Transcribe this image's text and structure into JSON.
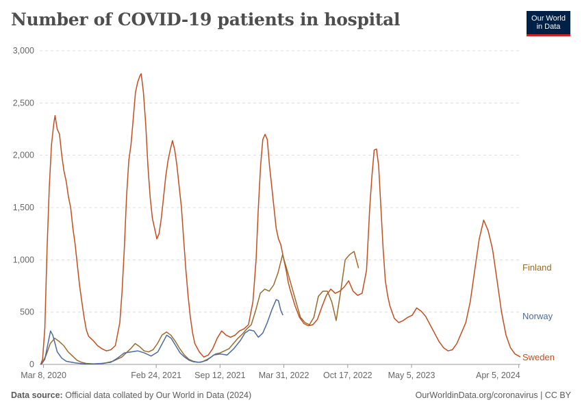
{
  "title": "Number of COVID-19 patients in hospital",
  "logo": {
    "line1": "Our World",
    "line2": "in Data"
  },
  "footer": {
    "source_label": "Data source:",
    "source_text": "Official data collated by Our World in Data (2024)",
    "right_text": "OurWorldinData.org/coronavirus | CC BY"
  },
  "chart_data": {
    "type": "line",
    "title": "Number of COVID-19 patients in hospital",
    "x_start": "2020-02-25",
    "x_end": "2024-04-10",
    "ylim": [
      0,
      3000
    ],
    "y_ticks": [
      0,
      500,
      1000,
      1500,
      2000,
      2500,
      3000
    ],
    "y_tick_labels": [
      "0",
      "500",
      "1,000",
      "1,500",
      "2,000",
      "2,500",
      "3,000"
    ],
    "x_ticks": [
      "2020-03-08",
      "2021-02-24",
      "2021-09-12",
      "2022-03-31",
      "2022-10-17",
      "2023-05-05",
      "2024-04-05"
    ],
    "x_tick_labels": [
      "Mar 8, 2020",
      "Feb 24, 2021",
      "Sep 12, 2021",
      "Mar 31, 2022",
      "Oct 17, 2022",
      "May 5, 2023",
      "Apr 5, 2024"
    ],
    "grid": "horizontal dashed",
    "legend": "right, labels at line ends",
    "series": [
      {
        "name": "Sweden",
        "color": "#c44d1e",
        "points": [
          [
            "2020-02-28",
            0
          ],
          [
            "2020-03-05",
            50
          ],
          [
            "2020-03-12",
            350
          ],
          [
            "2020-03-19",
            1100
          ],
          [
            "2020-03-26",
            1700
          ],
          [
            "2020-04-02",
            2100
          ],
          [
            "2020-04-09",
            2300
          ],
          [
            "2020-04-13",
            2380
          ],
          [
            "2020-04-20",
            2250
          ],
          [
            "2020-04-27",
            2200
          ],
          [
            "2020-05-04",
            2000
          ],
          [
            "2020-05-11",
            1850
          ],
          [
            "2020-05-18",
            1750
          ],
          [
            "2020-05-25",
            1600
          ],
          [
            "2020-06-01",
            1500
          ],
          [
            "2020-06-08",
            1300
          ],
          [
            "2020-06-15",
            1150
          ],
          [
            "2020-06-22",
            950
          ],
          [
            "2020-06-29",
            750
          ],
          [
            "2020-07-06",
            600
          ],
          [
            "2020-07-13",
            450
          ],
          [
            "2020-07-20",
            330
          ],
          [
            "2020-07-27",
            270
          ],
          [
            "2020-08-10",
            230
          ],
          [
            "2020-08-24",
            180
          ],
          [
            "2020-09-07",
            150
          ],
          [
            "2020-09-21",
            130
          ],
          [
            "2020-10-05",
            140
          ],
          [
            "2020-10-19",
            180
          ],
          [
            "2020-11-02",
            400
          ],
          [
            "2020-11-09",
            700
          ],
          [
            "2020-11-16",
            1100
          ],
          [
            "2020-11-23",
            1600
          ],
          [
            "2020-11-30",
            1950
          ],
          [
            "2020-12-07",
            2100
          ],
          [
            "2020-12-14",
            2350
          ],
          [
            "2020-12-21",
            2600
          ],
          [
            "2020-12-28",
            2700
          ],
          [
            "2021-01-04",
            2760
          ],
          [
            "2021-01-08",
            2780
          ],
          [
            "2021-01-15",
            2600
          ],
          [
            "2021-01-22",
            2300
          ],
          [
            "2021-01-29",
            1900
          ],
          [
            "2021-02-05",
            1600
          ],
          [
            "2021-02-12",
            1400
          ],
          [
            "2021-02-19",
            1300
          ],
          [
            "2021-02-26",
            1200
          ],
          [
            "2021-03-05",
            1250
          ],
          [
            "2021-03-12",
            1400
          ],
          [
            "2021-03-19",
            1600
          ],
          [
            "2021-03-26",
            1800
          ],
          [
            "2021-04-02",
            1950
          ],
          [
            "2021-04-09",
            2050
          ],
          [
            "2021-04-16",
            2140
          ],
          [
            "2021-04-23",
            2050
          ],
          [
            "2021-04-30",
            1900
          ],
          [
            "2021-05-07",
            1700
          ],
          [
            "2021-05-14",
            1500
          ],
          [
            "2021-05-21",
            1200
          ],
          [
            "2021-05-28",
            900
          ],
          [
            "2021-06-04",
            650
          ],
          [
            "2021-06-11",
            450
          ],
          [
            "2021-06-18",
            300
          ],
          [
            "2021-06-25",
            200
          ],
          [
            "2021-07-09",
            120
          ],
          [
            "2021-07-23",
            70
          ],
          [
            "2021-08-06",
            90
          ],
          [
            "2021-08-20",
            150
          ],
          [
            "2021-09-03",
            250
          ],
          [
            "2021-09-17",
            320
          ],
          [
            "2021-10-01",
            280
          ],
          [
            "2021-10-15",
            260
          ],
          [
            "2021-10-29",
            280
          ],
          [
            "2021-11-12",
            320
          ],
          [
            "2021-11-26",
            340
          ],
          [
            "2021-12-10",
            380
          ],
          [
            "2021-12-24",
            600
          ],
          [
            "2022-01-03",
            1000
          ],
          [
            "2022-01-10",
            1500
          ],
          [
            "2022-01-17",
            1900
          ],
          [
            "2022-01-24",
            2150
          ],
          [
            "2022-01-31",
            2200
          ],
          [
            "2022-02-07",
            2150
          ],
          [
            "2022-02-14",
            1900
          ],
          [
            "2022-02-21",
            1700
          ],
          [
            "2022-02-28",
            1500
          ],
          [
            "2022-03-07",
            1300
          ],
          [
            "2022-03-14",
            1200
          ],
          [
            "2022-03-21",
            1150
          ],
          [
            "2022-03-31",
            1000
          ],
          [
            "2022-04-07",
            900
          ],
          [
            "2022-04-14",
            780
          ],
          [
            "2022-04-21",
            700
          ],
          [
            "2022-05-05",
            560
          ],
          [
            "2022-05-19",
            450
          ],
          [
            "2022-06-02",
            390
          ],
          [
            "2022-06-16",
            370
          ],
          [
            "2022-06-30",
            380
          ],
          [
            "2022-07-14",
            430
          ],
          [
            "2022-07-28",
            550
          ],
          [
            "2022-08-11",
            660
          ],
          [
            "2022-08-25",
            720
          ],
          [
            "2022-09-08",
            680
          ],
          [
            "2022-09-22",
            700
          ],
          [
            "2022-10-06",
            740
          ],
          [
            "2022-10-20",
            800
          ],
          [
            "2022-11-03",
            700
          ],
          [
            "2022-11-17",
            660
          ],
          [
            "2022-12-01",
            680
          ],
          [
            "2022-12-15",
            900
          ],
          [
            "2022-12-25",
            1500
          ],
          [
            "2023-01-01",
            1800
          ],
          [
            "2023-01-08",
            2050
          ],
          [
            "2023-01-15",
            2060
          ],
          [
            "2023-01-22",
            1900
          ],
          [
            "2023-01-29",
            1500
          ],
          [
            "2023-02-05",
            1100
          ],
          [
            "2023-02-12",
            800
          ],
          [
            "2023-02-19",
            660
          ],
          [
            "2023-02-26",
            560
          ],
          [
            "2023-03-12",
            440
          ],
          [
            "2023-03-26",
            400
          ],
          [
            "2023-04-09",
            420
          ],
          [
            "2023-04-23",
            450
          ],
          [
            "2023-05-07",
            470
          ],
          [
            "2023-05-21",
            540
          ],
          [
            "2023-06-04",
            510
          ],
          [
            "2023-06-18",
            460
          ],
          [
            "2023-07-02",
            380
          ],
          [
            "2023-07-16",
            300
          ],
          [
            "2023-07-30",
            220
          ],
          [
            "2023-08-13",
            160
          ],
          [
            "2023-08-27",
            130
          ],
          [
            "2023-09-10",
            140
          ],
          [
            "2023-09-24",
            200
          ],
          [
            "2023-10-08",
            300
          ],
          [
            "2023-10-22",
            400
          ],
          [
            "2023-11-05",
            600
          ],
          [
            "2023-11-19",
            900
          ],
          [
            "2023-12-03",
            1200
          ],
          [
            "2023-12-17",
            1380
          ],
          [
            "2023-12-31",
            1280
          ],
          [
            "2024-01-14",
            1100
          ],
          [
            "2024-01-28",
            800
          ],
          [
            "2024-02-11",
            500
          ],
          [
            "2024-02-25",
            280
          ],
          [
            "2024-03-10",
            160
          ],
          [
            "2024-03-24",
            100
          ],
          [
            "2024-04-05",
            80
          ],
          [
            "2024-04-10",
            70
          ]
        ]
      },
      {
        "name": "Finland",
        "color": "#9a6a2b",
        "points": [
          [
            "2020-03-01",
            0
          ],
          [
            "2020-03-15",
            80
          ],
          [
            "2020-03-29",
            200
          ],
          [
            "2020-04-12",
            250
          ],
          [
            "2020-04-26",
            220
          ],
          [
            "2020-05-10",
            180
          ],
          [
            "2020-05-24",
            120
          ],
          [
            "2020-06-07",
            80
          ],
          [
            "2020-06-21",
            40
          ],
          [
            "2020-07-05",
            20
          ],
          [
            "2020-07-19",
            10
          ],
          [
            "2020-08-16",
            5
          ],
          [
            "2020-09-13",
            10
          ],
          [
            "2020-10-11",
            30
          ],
          [
            "2020-11-08",
            70
          ],
          [
            "2020-12-06",
            150
          ],
          [
            "2020-12-20",
            200
          ],
          [
            "2021-01-03",
            170
          ],
          [
            "2021-01-17",
            130
          ],
          [
            "2021-01-31",
            120
          ],
          [
            "2021-02-14",
            140
          ],
          [
            "2021-02-28",
            200
          ],
          [
            "2021-03-14",
            280
          ],
          [
            "2021-03-28",
            310
          ],
          [
            "2021-04-11",
            280
          ],
          [
            "2021-04-25",
            220
          ],
          [
            "2021-05-09",
            150
          ],
          [
            "2021-05-23",
            90
          ],
          [
            "2021-06-06",
            50
          ],
          [
            "2021-06-20",
            30
          ],
          [
            "2021-07-04",
            20
          ],
          [
            "2021-07-18",
            25
          ],
          [
            "2021-08-01",
            45
          ],
          [
            "2021-08-15",
            70
          ],
          [
            "2021-08-29",
            100
          ],
          [
            "2021-09-12",
            110
          ],
          [
            "2021-09-26",
            130
          ],
          [
            "2021-10-10",
            150
          ],
          [
            "2021-10-24",
            200
          ],
          [
            "2021-11-07",
            250
          ],
          [
            "2021-11-21",
            290
          ],
          [
            "2021-12-05",
            340
          ],
          [
            "2021-12-19",
            380
          ],
          [
            "2022-01-02",
            520
          ],
          [
            "2022-01-16",
            680
          ],
          [
            "2022-01-30",
            720
          ],
          [
            "2022-02-13",
            700
          ],
          [
            "2022-02-27",
            760
          ],
          [
            "2022-03-13",
            880
          ],
          [
            "2022-03-27",
            1050
          ],
          [
            "2022-04-10",
            900
          ],
          [
            "2022-04-24",
            750
          ],
          [
            "2022-05-08",
            600
          ],
          [
            "2022-05-22",
            450
          ],
          [
            "2022-06-05",
            400
          ],
          [
            "2022-06-19",
            380
          ],
          [
            "2022-07-03",
            450
          ],
          [
            "2022-07-17",
            650
          ],
          [
            "2022-07-31",
            700
          ],
          [
            "2022-08-14",
            700
          ],
          [
            "2022-08-28",
            600
          ],
          [
            "2022-09-11",
            420
          ],
          [
            "2022-09-25",
            700
          ],
          [
            "2022-10-09",
            1000
          ],
          [
            "2022-10-23",
            1050
          ],
          [
            "2022-11-06",
            1080
          ],
          [
            "2022-11-20",
            920
          ]
        ]
      },
      {
        "name": "Norway",
        "color": "#4c6a9c",
        "points": [
          [
            "2020-03-01",
            0
          ],
          [
            "2020-03-12",
            50
          ],
          [
            "2020-03-22",
            200
          ],
          [
            "2020-03-30",
            320
          ],
          [
            "2020-04-06",
            280
          ],
          [
            "2020-04-13",
            200
          ],
          [
            "2020-04-20",
            120
          ],
          [
            "2020-05-04",
            60
          ],
          [
            "2020-05-18",
            30
          ],
          [
            "2020-06-15",
            15
          ],
          [
            "2020-07-13",
            5
          ],
          [
            "2020-08-10",
            5
          ],
          [
            "2020-09-07",
            10
          ],
          [
            "2020-10-05",
            20
          ],
          [
            "2020-10-26",
            60
          ],
          [
            "2020-11-16",
            110
          ],
          [
            "2020-12-07",
            120
          ],
          [
            "2020-12-28",
            130
          ],
          [
            "2021-01-18",
            110
          ],
          [
            "2021-02-08",
            80
          ],
          [
            "2021-03-01",
            120
          ],
          [
            "2021-03-15",
            200
          ],
          [
            "2021-03-29",
            280
          ],
          [
            "2021-04-12",
            250
          ],
          [
            "2021-04-26",
            180
          ],
          [
            "2021-05-10",
            110
          ],
          [
            "2021-05-24",
            70
          ],
          [
            "2021-06-07",
            40
          ],
          [
            "2021-06-21",
            25
          ],
          [
            "2021-07-12",
            20
          ],
          [
            "2021-08-02",
            40
          ],
          [
            "2021-08-23",
            90
          ],
          [
            "2021-09-13",
            100
          ],
          [
            "2021-10-04",
            90
          ],
          [
            "2021-10-25",
            150
          ],
          [
            "2021-11-15",
            230
          ],
          [
            "2021-11-29",
            300
          ],
          [
            "2021-12-13",
            330
          ],
          [
            "2021-12-27",
            320
          ],
          [
            "2022-01-10",
            260
          ],
          [
            "2022-01-24",
            300
          ],
          [
            "2022-02-07",
            400
          ],
          [
            "2022-02-21",
            520
          ],
          [
            "2022-03-07",
            620
          ],
          [
            "2022-03-14",
            610
          ],
          [
            "2022-03-21",
            520
          ],
          [
            "2022-03-28",
            470
          ]
        ]
      }
    ]
  }
}
